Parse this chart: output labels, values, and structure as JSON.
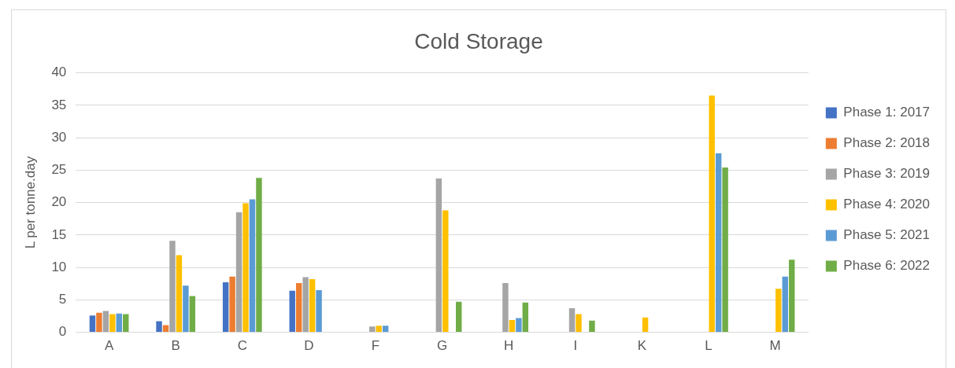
{
  "chart_data": {
    "type": "bar",
    "title": "Cold Storage",
    "ylabel": "L per tonne.day",
    "categories": [
      "A",
      "B",
      "C",
      "D",
      "F",
      "G",
      "H",
      "I",
      "K",
      "L",
      "M"
    ],
    "series": [
      {
        "name": "Phase 1: 2017",
        "color": "#4472c4",
        "values": [
          2.6,
          1.7,
          7.7,
          6.4,
          null,
          null,
          null,
          null,
          null,
          null,
          null
        ]
      },
      {
        "name": "Phase 2: 2018",
        "color": "#ed7d31",
        "values": [
          3.0,
          1.1,
          8.6,
          7.6,
          null,
          null,
          null,
          null,
          null,
          null,
          null
        ]
      },
      {
        "name": "Phase 3: 2019",
        "color": "#a5a5a5",
        "values": [
          3.3,
          14.1,
          18.5,
          8.5,
          0.9,
          23.7,
          7.6,
          3.7,
          null,
          null,
          null
        ]
      },
      {
        "name": "Phase 4: 2020",
        "color": "#ffc000",
        "values": [
          2.8,
          11.9,
          19.9,
          8.2,
          1.0,
          18.8,
          1.9,
          2.8,
          2.3,
          36.5,
          6.7
        ]
      },
      {
        "name": "Phase 5: 2021",
        "color": "#5b9bd5",
        "values": [
          2.9,
          7.2,
          20.5,
          6.5,
          1.0,
          null,
          2.2,
          null,
          null,
          27.6,
          8.6
        ]
      },
      {
        "name": "Phase 6: 2022",
        "color": "#70ad47",
        "values": [
          2.8,
          5.6,
          23.8,
          null,
          null,
          4.7,
          4.6,
          1.8,
          null,
          25.4,
          11.2
        ]
      }
    ],
    "ylim": [
      0,
      40
    ],
    "yticks": [
      0,
      5,
      10,
      15,
      20,
      25,
      30,
      35,
      40
    ],
    "grid": "y",
    "legend": "right"
  }
}
